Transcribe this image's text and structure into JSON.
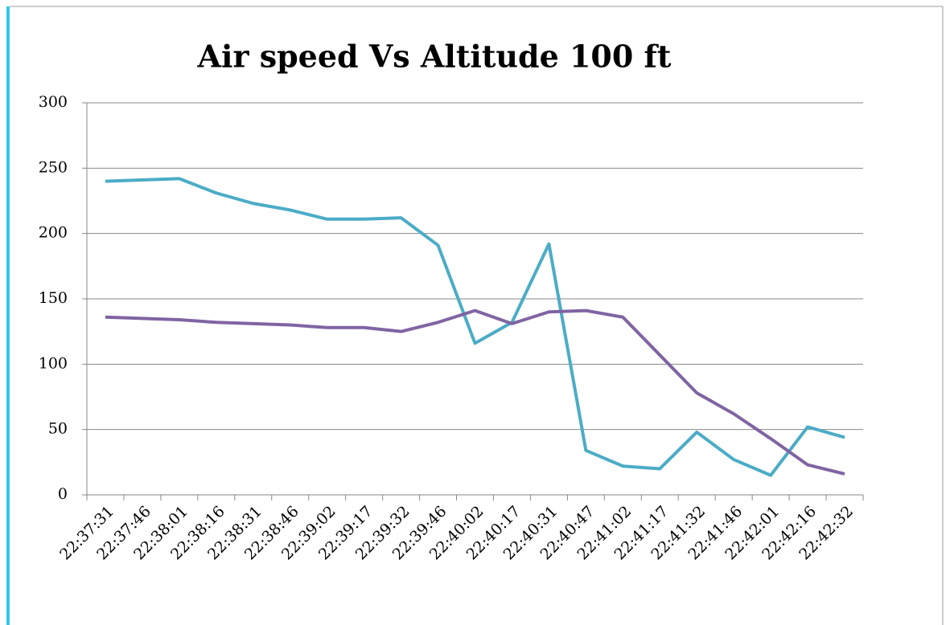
{
  "chart_data": {
    "type": "line",
    "title": "Air speed Vs Altitude 100 ft",
    "categories": [
      "22:37:31",
      "22:37:46",
      "22:38:01",
      "22:38:16",
      "22:38:31",
      "22:38:46",
      "22:39:02",
      "22:39:17",
      "22:39:32",
      "22:39:46",
      "22:40:02",
      "22:40:17",
      "22:40:31",
      "22:40:47",
      "22:41:02",
      "22:41:17",
      "22:41:32",
      "22:41:46",
      "22:42:01",
      "22:42:16",
      "22:42:32"
    ],
    "series": [
      {
        "color": "#4bacc6",
        "values": [
          240,
          241,
          242,
          231,
          223,
          218,
          211,
          211,
          212,
          191,
          116,
          132,
          192,
          34,
          22,
          20,
          48,
          27,
          15,
          52,
          44
        ]
      },
      {
        "color": "#8064a2",
        "values": [
          136,
          135,
          134,
          132,
          131,
          130,
          128,
          128,
          125,
          132,
          141,
          131,
          140,
          141,
          136,
          107,
          78,
          62,
          43,
          23,
          16
        ]
      }
    ],
    "ylim": [
      0,
      300
    ],
    "yticks": [
      0,
      50,
      100,
      150,
      200,
      250,
      300
    ],
    "grid": true
  }
}
